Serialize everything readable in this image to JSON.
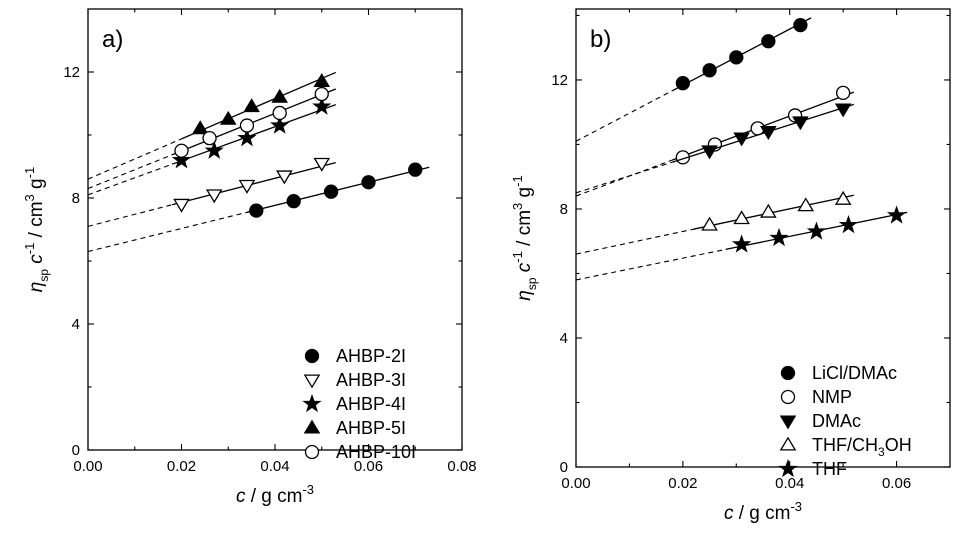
{
  "chart_data": [
    {
      "type": "scatter",
      "panel_label": "a)",
      "xlabel": "c / g cm-3",
      "ylabel": "ηsp c-1 / cm3 g-1",
      "xlim": [
        0.0,
        0.08
      ],
      "ylim": [
        0,
        14
      ],
      "xticks": [
        "0.00",
        "0.02",
        "0.04",
        "0.06",
        "0.08"
      ],
      "yticks": [
        "0",
        "4",
        "8",
        "12"
      ],
      "xtick_values": [
        0.0,
        0.02,
        0.04,
        0.06,
        0.08
      ],
      "ytick_values": [
        0,
        4,
        8,
        12
      ],
      "legend_position": "bottom-right",
      "series": [
        {
          "name": "AHBP-2I",
          "marker": "filled-circle",
          "x": [
            0.036,
            0.044,
            0.052,
            0.06,
            0.07
          ],
          "y": [
            7.6,
            7.9,
            8.2,
            8.5,
            8.9
          ],
          "intercept": 6.3,
          "fit_x": [
            0.034,
            0.073
          ]
        },
        {
          "name": "AHBP-3I",
          "marker": "open-triangle-down",
          "x": [
            0.02,
            0.027,
            0.034,
            0.042,
            0.05
          ],
          "y": [
            7.8,
            8.1,
            8.4,
            8.7,
            9.1
          ],
          "intercept": 7.1,
          "fit_x": [
            0.018,
            0.053
          ]
        },
        {
          "name": "AHBP-4I",
          "marker": "filled-star",
          "x": [
            0.02,
            0.027,
            0.034,
            0.041,
            0.05
          ],
          "y": [
            9.2,
            9.5,
            9.9,
            10.3,
            10.9
          ],
          "intercept": 8.1,
          "fit_x": [
            0.018,
            0.053
          ]
        },
        {
          "name": "AHBP-5I",
          "marker": "filled-triangle-up",
          "x": [
            0.024,
            0.03,
            0.035,
            0.041,
            0.05
          ],
          "y": [
            10.2,
            10.5,
            10.9,
            11.2,
            11.7
          ],
          "intercept": 8.6,
          "fit_x": [
            0.02,
            0.053
          ]
        },
        {
          "name": "AHBP-10I",
          "marker": "open-circle",
          "x": [
            0.02,
            0.026,
            0.034,
            0.041,
            0.05
          ],
          "y": [
            9.5,
            9.9,
            10.3,
            10.7,
            11.3
          ],
          "intercept": 8.3,
          "fit_x": [
            0.018,
            0.053
          ]
        }
      ]
    },
    {
      "type": "scatter",
      "panel_label": "b)",
      "xlabel": "c / g cm-3",
      "ylabel": "ηsp c-1 / cm3 g-1",
      "xlim": [
        0.0,
        0.07
      ],
      "ylim": [
        0,
        14.2
      ],
      "xticks": [
        "0.00",
        "0.02",
        "0.04",
        "0.06"
      ],
      "yticks": [
        "0",
        "4",
        "8",
        "12"
      ],
      "xtick_values": [
        0.0,
        0.02,
        0.04,
        0.06
      ],
      "ytick_values": [
        0,
        4,
        8,
        12
      ],
      "legend_position": "bottom-right",
      "series": [
        {
          "name": "LiCl/DMAc",
          "marker": "filled-circle",
          "x": [
            0.02,
            0.025,
            0.03,
            0.036,
            0.042
          ],
          "y": [
            11.9,
            12.3,
            12.7,
            13.2,
            13.7
          ],
          "intercept": 10.1,
          "fit_x": [
            0.018,
            0.044
          ]
        },
        {
          "name": "NMP",
          "marker": "open-circle",
          "x": [
            0.02,
            0.026,
            0.034,
            0.041,
            0.05
          ],
          "y": [
            9.6,
            10.0,
            10.5,
            10.9,
            11.6
          ],
          "intercept": 8.4,
          "fit_x": [
            0.018,
            0.052
          ]
        },
        {
          "name": "DMAc",
          "marker": "filled-triangle-down",
          "x": [
            0.025,
            0.031,
            0.036,
            0.042,
            0.05
          ],
          "y": [
            9.8,
            10.2,
            10.4,
            10.7,
            11.1
          ],
          "intercept": 8.5,
          "fit_x": [
            0.018,
            0.052
          ]
        },
        {
          "name": "THF/CH3OH",
          "marker": "open-triangle-up",
          "x": [
            0.025,
            0.031,
            0.036,
            0.043,
            0.05
          ],
          "y": [
            7.5,
            7.7,
            7.9,
            8.1,
            8.3
          ],
          "intercept": 6.6,
          "fit_x": [
            0.022,
            0.052
          ]
        },
        {
          "name": "THF",
          "marker": "filled-star",
          "x": [
            0.031,
            0.038,
            0.045,
            0.051,
            0.06
          ],
          "y": [
            6.9,
            7.1,
            7.3,
            7.5,
            7.8
          ],
          "intercept": 5.8,
          "fit_x": [
            0.028,
            0.062
          ]
        }
      ]
    }
  ],
  "labels": {
    "a": {
      "panel": "a)",
      "xlabel_var": "c",
      "xlabel_unit": " / g cm",
      "xlabel_exp": "-3",
      "ylabel_eta": "η",
      "ylabel_sub": "sp",
      "ylabel_c": " c",
      "ylabel_exp1": "-1",
      "ylabel_unit": " / cm",
      "ylabel_exp2": "3",
      "ylabel_g": " g",
      "ylabel_exp3": "-1"
    },
    "b": {
      "panel": "b)",
      "xlabel_var": "c",
      "xlabel_unit": " / g cm",
      "xlabel_exp": "-3",
      "ylabel_eta": "η",
      "ylabel_sub": "sp",
      "ylabel_c": " c",
      "ylabel_exp1": "-1",
      "ylabel_unit": " / cm",
      "ylabel_exp2": "3",
      "ylabel_g": " g",
      "ylabel_exp3": "-1"
    }
  }
}
